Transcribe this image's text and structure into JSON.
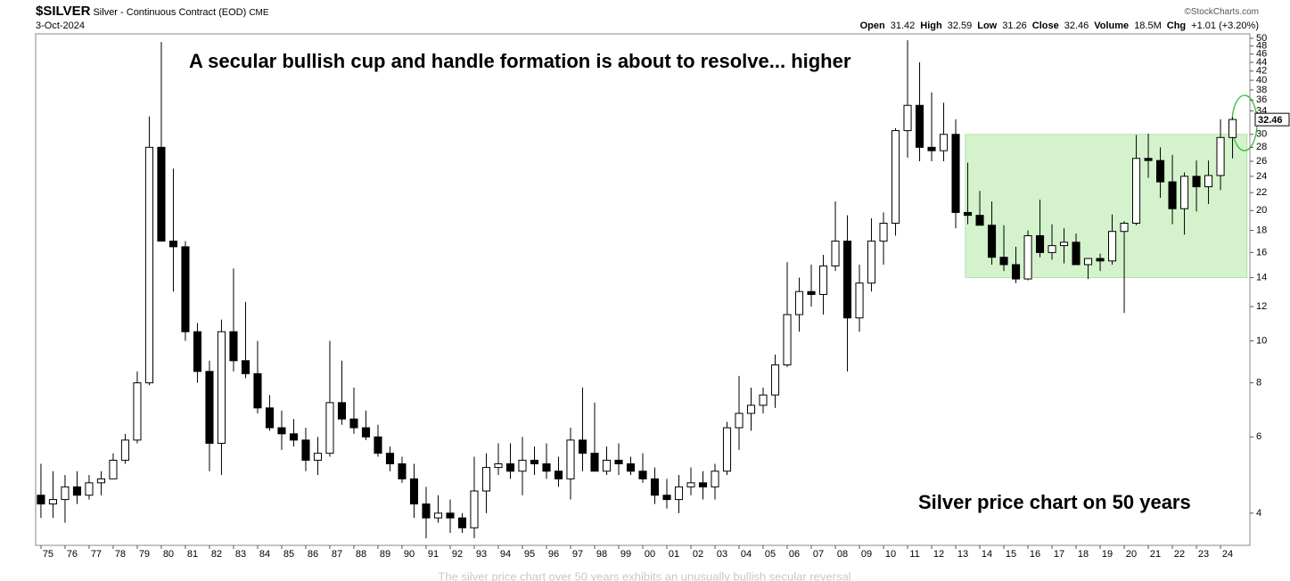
{
  "header": {
    "symbol": "$SILVER",
    "description": "Silver - Continuous Contract (EOD)",
    "exchange": "CME",
    "date": "3-Oct-2024",
    "source": "©StockCharts.com",
    "quote": [
      {
        "label": "Open",
        "value": 31.42
      },
      {
        "label": "High",
        "value": 32.59
      },
      {
        "label": "Low",
        "value": 31.26
      },
      {
        "label": "Close",
        "value": 32.46
      },
      {
        "label": "Volume",
        "value": "18.5M"
      },
      {
        "label": "Chg",
        "value": "+1.01 (+3.20%)"
      }
    ]
  },
  "chart_data": {
    "type": "candlestick",
    "title": "A secular bullish cup and handle formation is about to resolve... higher",
    "annotation": "Silver price chart on 50 years",
    "log_scale": true,
    "grid": false,
    "x": [
      1975,
      1975.5,
      1976,
      1976.5,
      1977,
      1977.5,
      1978,
      1978.5,
      1979,
      1979.5,
      1980,
      1980.5,
      1981,
      1981.5,
      1982,
      1982.5,
      1983,
      1983.5,
      1984,
      1984.5,
      1985,
      1985.5,
      1986,
      1986.5,
      1987,
      1987.5,
      1988,
      1988.5,
      1989,
      1989.5,
      1990,
      1990.5,
      1991,
      1991.5,
      1992,
      1992.5,
      1993,
      1993.5,
      1994,
      1994.5,
      1995,
      1995.5,
      1996,
      1996.5,
      1997,
      1997.5,
      1998,
      1998.5,
      1999,
      1999.5,
      2000,
      2000.5,
      2001,
      2001.5,
      2002,
      2002.5,
      2003,
      2003.5,
      2004,
      2004.5,
      2005,
      2005.5,
      2006,
      2006.5,
      2007,
      2007.5,
      2008,
      2008.5,
      2009,
      2009.5,
      2010,
      2010.5,
      2011,
      2011.5,
      2012,
      2012.5,
      2013,
      2013.5,
      2014,
      2014.5,
      2015,
      2015.5,
      2016,
      2016.5,
      2017,
      2017.5,
      2018,
      2018.5,
      2019,
      2019.5,
      2020,
      2020.5,
      2021,
      2021.5,
      2022,
      2022.5,
      2023,
      2023.5,
      2024,
      2024.5
    ],
    "open": [
      4.4,
      4.2,
      4.3,
      4.6,
      4.4,
      4.7,
      4.8,
      5.3,
      5.9,
      8.0,
      28,
      17,
      16.5,
      10.5,
      8.5,
      5.8,
      10.5,
      9.0,
      8.4,
      7.0,
      6.3,
      6.1,
      5.9,
      5.3,
      5.5,
      7.2,
      6.6,
      6.3,
      6.0,
      5.5,
      5.2,
      4.8,
      4.2,
      3.9,
      4.0,
      3.9,
      3.7,
      4.5,
      5.1,
      5.2,
      5.0,
      5.3,
      5.2,
      5.0,
      4.8,
      5.9,
      5.5,
      5.0,
      5.3,
      5.2,
      5.0,
      4.8,
      4.4,
      4.3,
      4.6,
      4.7,
      4.6,
      5.0,
      6.3,
      6.8,
      7.1,
      7.5,
      8.8,
      11.5,
      13.0,
      12.8,
      14.9,
      17.0,
      11.3,
      13.6,
      17.0,
      18.7,
      30.6,
      35.0,
      28.0,
      27.5,
      30.0,
      19.8,
      19.5,
      18.5,
      15.6,
      15.0,
      13.9,
      17.5,
      16.0,
      16.6,
      16.9,
      15.0,
      15.5,
      15.3,
      17.9,
      18.7,
      26.4,
      26.1,
      23.3,
      20.2,
      24.0,
      22.7,
      24.1,
      29.5
    ],
    "high": [
      5.2,
      5.0,
      4.9,
      5.0,
      4.9,
      5.0,
      5.5,
      6.1,
      8.5,
      33,
      49,
      25,
      17,
      11,
      9.0,
      11.2,
      14.7,
      12.3,
      10.0,
      7.5,
      6.9,
      6.6,
      6.3,
      6.0,
      10.0,
      9.0,
      7.8,
      6.9,
      6.4,
      5.7,
      5.4,
      5.2,
      4.6,
      4.4,
      4.3,
      4.0,
      5.4,
      5.5,
      5.8,
      5.8,
      6.0,
      5.7,
      5.8,
      5.4,
      6.3,
      7.8,
      7.2,
      5.7,
      5.8,
      5.4,
      5.5,
      5.1,
      4.8,
      4.9,
      5.1,
      5.0,
      5.2,
      6.5,
      8.3,
      7.8,
      7.8,
      9.3,
      15.2,
      14.0,
      15.0,
      15.8,
      21.0,
      19.5,
      15.0,
      19.2,
      19.8,
      31.0,
      49.5,
      44,
      37.5,
      35.5,
      32.5,
      25.8,
      22.2,
      21.0,
      18.5,
      16.5,
      18.0,
      21.2,
      18.6,
      18.2,
      17.7,
      15.5,
      15.9,
      19.6,
      18.9,
      29.9,
      30.1,
      28.0,
      26.9,
      24.5,
      26.1,
      26.1,
      32.5,
      32.9
    ],
    "low": [
      3.9,
      3.9,
      3.8,
      4.2,
      4.3,
      4.4,
      4.8,
      5.2,
      5.8,
      7.9,
      17,
      13,
      10,
      8.0,
      5.0,
      4.9,
      8.5,
      8.2,
      6.8,
      6.2,
      5.6,
      5.7,
      5.0,
      4.9,
      5.4,
      6.4,
      6.1,
      5.9,
      5.4,
      5.0,
      4.7,
      3.9,
      3.5,
      3.8,
      3.6,
      3.6,
      3.5,
      4.0,
      4.9,
      4.8,
      4.4,
      4.9,
      4.8,
      4.6,
      4.3,
      5.0,
      5.0,
      4.9,
      4.9,
      4.9,
      4.7,
      4.2,
      4.1,
      4.0,
      4.4,
      4.3,
      4.3,
      4.9,
      5.6,
      6.2,
      6.8,
      7.0,
      8.7,
      10.5,
      12.0,
      11.5,
      14.5,
      8.5,
      10.5,
      13.0,
      15.0,
      17.5,
      26.5,
      26.0,
      26.0,
      26.0,
      18.2,
      18.6,
      18.5,
      15.0,
      14.5,
      13.6,
      13.8,
      15.6,
      15.4,
      15.1,
      15.0,
      13.9,
      14.5,
      15.0,
      11.6,
      18.5,
      23.8,
      21.4,
      18.6,
      17.6,
      19.9,
      20.7,
      22.3,
      26.4
    ],
    "close": [
      4.2,
      4.3,
      4.6,
      4.4,
      4.7,
      4.8,
      5.3,
      5.9,
      8.0,
      28,
      17,
      16.5,
      10.5,
      8.5,
      5.8,
      10.5,
      9.0,
      8.4,
      7.0,
      6.3,
      6.1,
      5.9,
      5.3,
      5.5,
      7.2,
      6.6,
      6.3,
      6.0,
      5.5,
      5.2,
      4.8,
      4.2,
      3.9,
      4.0,
      3.9,
      3.7,
      4.5,
      5.1,
      5.2,
      5.0,
      5.3,
      5.2,
      5.0,
      4.8,
      5.9,
      5.5,
      5.0,
      5.3,
      5.2,
      5.0,
      4.8,
      4.4,
      4.3,
      4.6,
      4.7,
      4.6,
      5.0,
      6.3,
      6.8,
      7.1,
      7.5,
      8.8,
      11.5,
      13.0,
      12.8,
      14.9,
      17.0,
      11.3,
      13.6,
      17.0,
      18.7,
      30.6,
      35.0,
      28.0,
      27.5,
      30.0,
      19.8,
      19.5,
      18.5,
      15.6,
      15.0,
      13.9,
      17.5,
      16.0,
      16.6,
      16.9,
      15.0,
      15.5,
      15.3,
      17.9,
      18.7,
      26.4,
      26.1,
      23.3,
      20.2,
      24.0,
      22.7,
      24.1,
      29.5,
      32.46
    ],
    "up_color": "#ffffff",
    "down_color": "#000000",
    "highlight": {
      "xlim": [
        2013.4,
        2025.1
      ],
      "ylim": [
        14,
        30
      ],
      "color": "#d4f3cc"
    },
    "xlim": [
      1974.78,
      2025.22
    ],
    "ylim": [
      3.37,
      51.2
    ],
    "yticks": [
      4,
      6,
      8,
      10,
      12,
      14,
      16,
      18,
      20,
      22,
      24,
      26,
      28,
      30,
      34,
      36,
      38,
      40,
      42,
      44,
      46,
      48,
      50
    ],
    "xticks": [
      {
        "value": 1975,
        "label": "75"
      },
      {
        "value": 1976,
        "label": "76"
      },
      {
        "value": 1977,
        "label": "77"
      },
      {
        "value": 1978,
        "label": "78"
      },
      {
        "value": 1979,
        "label": "79"
      },
      {
        "value": 1980,
        "label": "80"
      },
      {
        "value": 1981,
        "label": "81"
      },
      {
        "value": 1982,
        "label": "82"
      },
      {
        "value": 1983,
        "label": "83"
      },
      {
        "value": 1984,
        "label": "84"
      },
      {
        "value": 1985,
        "label": "85"
      },
      {
        "value": 1986,
        "label": "86"
      },
      {
        "value": 1987,
        "label": "87"
      },
      {
        "value": 1988,
        "label": "88"
      },
      {
        "value": 1989,
        "label": "89"
      },
      {
        "value": 1990,
        "label": "90"
      },
      {
        "value": 1991,
        "label": "91"
      },
      {
        "value": 1992,
        "label": "92"
      },
      {
        "value": 1993,
        "label": "93"
      },
      {
        "value": 1994,
        "label": "94"
      },
      {
        "value": 1995,
        "label": "95"
      },
      {
        "value": 1996,
        "label": "96"
      },
      {
        "value": 1997,
        "label": "97"
      },
      {
        "value": 1998,
        "label": "98"
      },
      {
        "value": 1999,
        "label": "99"
      },
      {
        "value": 2000,
        "label": "00"
      },
      {
        "value": 2001,
        "label": "01"
      },
      {
        "value": 2002,
        "label": "02"
      },
      {
        "value": 2003,
        "label": "03"
      },
      {
        "value": 2004,
        "label": "04"
      },
      {
        "value": 2005,
        "label": "05"
      },
      {
        "value": 2006,
        "label": "06"
      },
      {
        "value": 2007,
        "label": "07"
      },
      {
        "value": 2008,
        "label": "08"
      },
      {
        "value": 2009,
        "label": "09"
      },
      {
        "value": 2010,
        "label": "10"
      },
      {
        "value": 2011,
        "label": "11"
      },
      {
        "value": 2012,
        "label": "12"
      },
      {
        "value": 2013,
        "label": "13"
      },
      {
        "value": 2014,
        "label": "14"
      },
      {
        "value": 2015,
        "label": "15"
      },
      {
        "value": 2016,
        "label": "16"
      },
      {
        "value": 2017,
        "label": "17"
      },
      {
        "value": 2018,
        "label": "18"
      },
      {
        "value": 2019,
        "label": "19"
      },
      {
        "value": 2020,
        "label": "20"
      },
      {
        "value": 2021,
        "label": "21"
      },
      {
        "value": 2022,
        "label": "22"
      },
      {
        "value": 2023,
        "label": "23"
      },
      {
        "value": 2024,
        "label": "24"
      }
    ]
  },
  "caption": "The silver price chart over 50 years exhibits an unusually bullish secular reversal"
}
